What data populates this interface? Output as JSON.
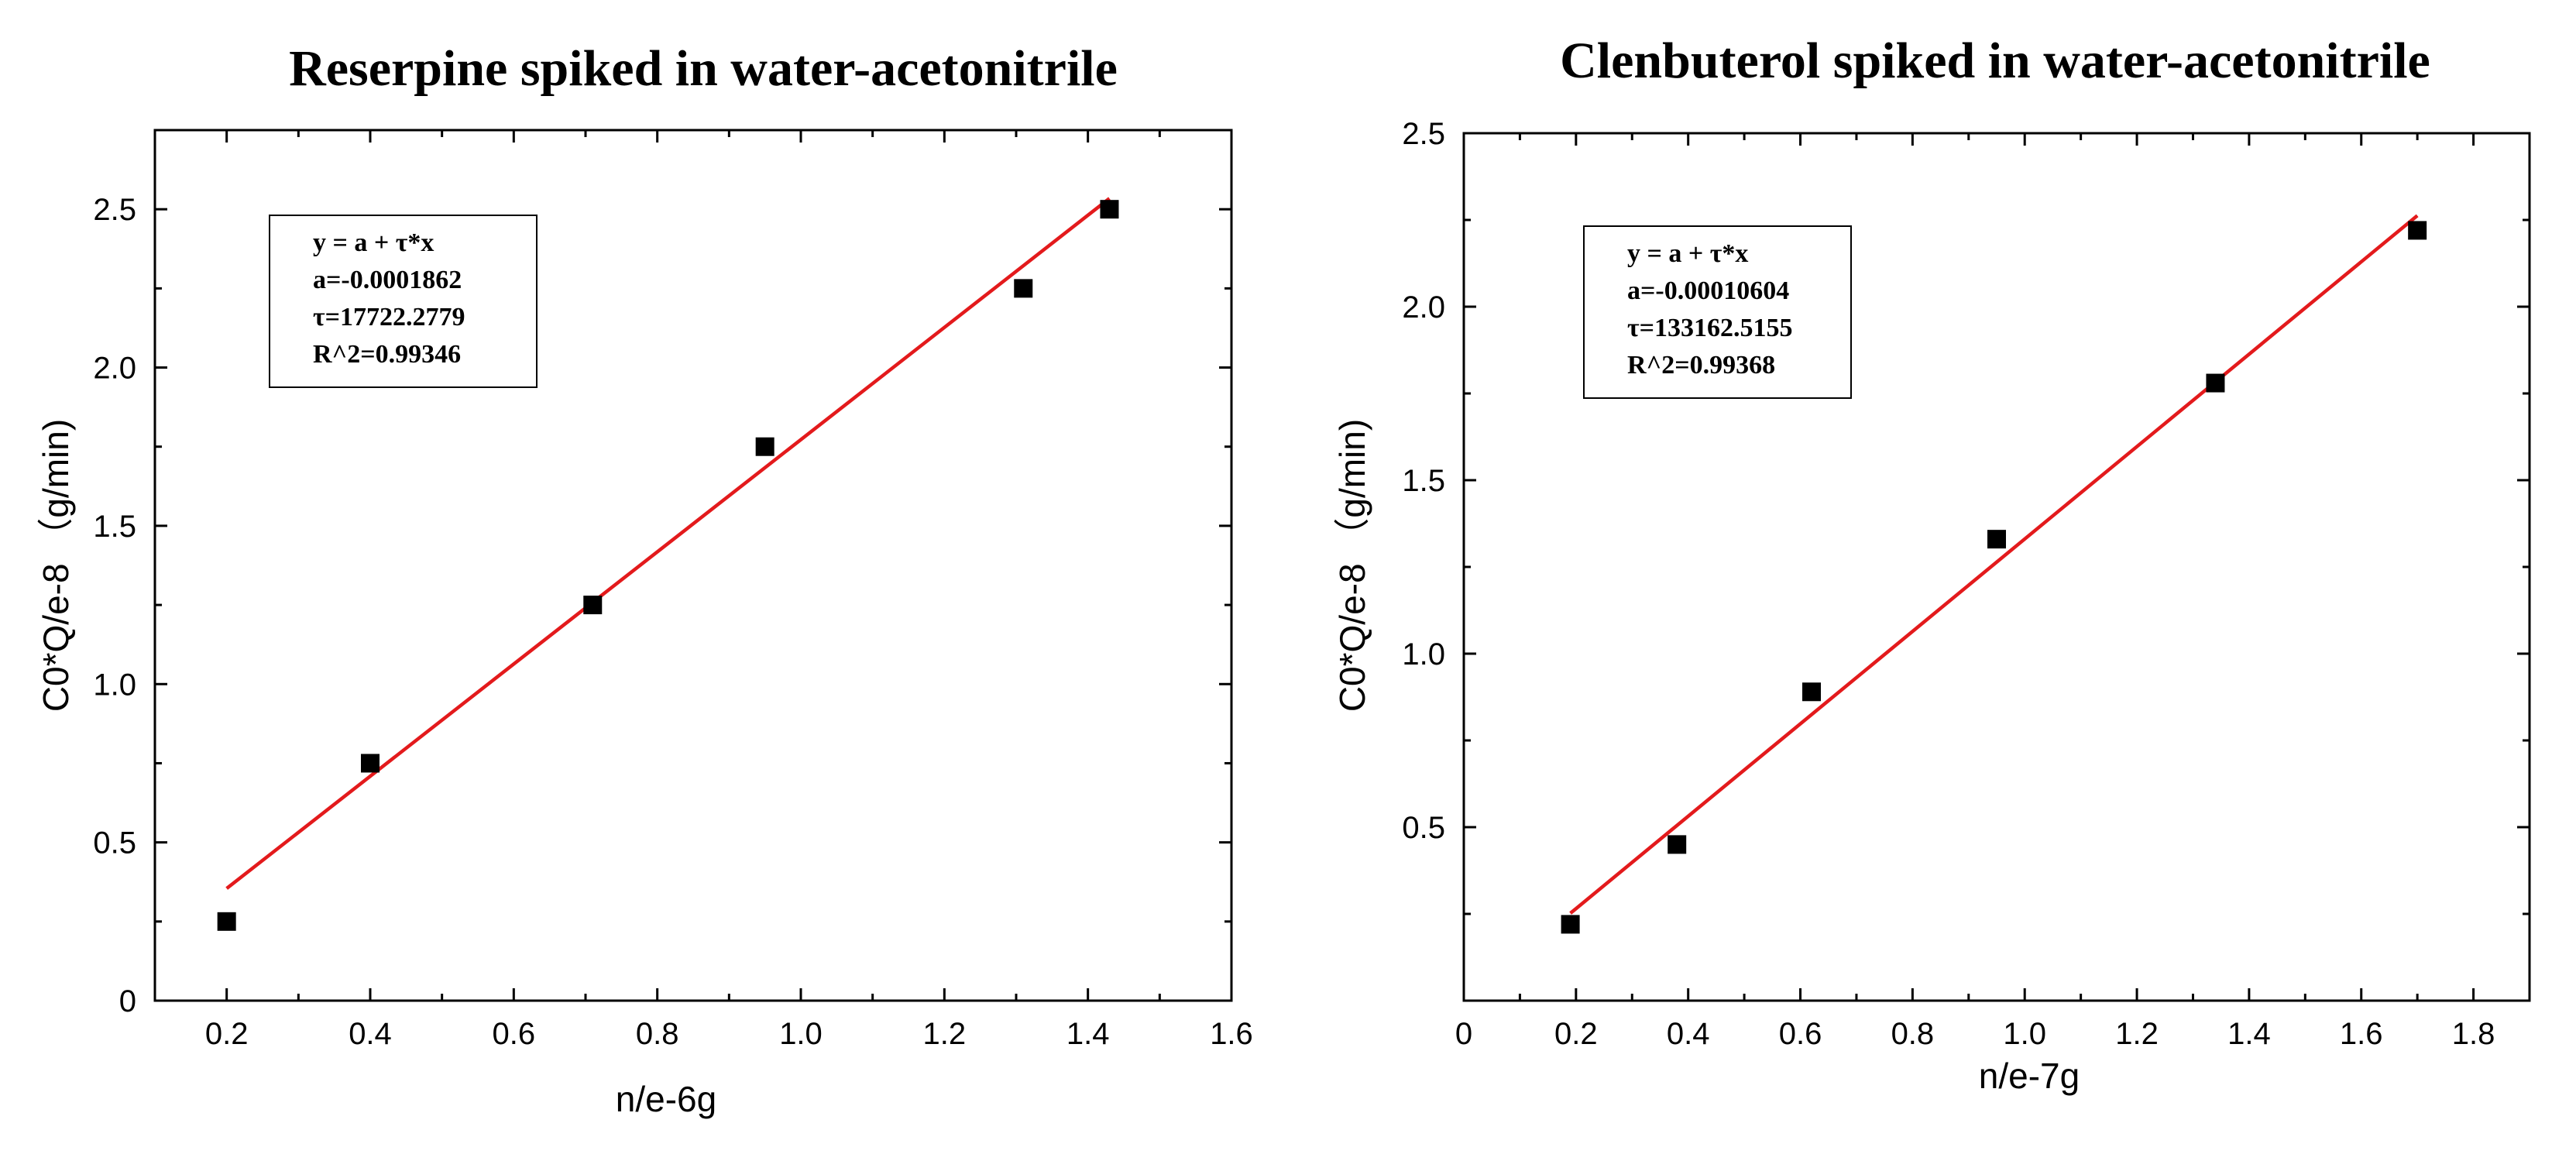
{
  "chart_data": [
    {
      "type": "scatter",
      "title": "Reserpine spiked in water-acetonitrile",
      "xlabel": "n/e-6g",
      "ylabel": "C0*Q/e-8 （g/min)",
      "xlim": [
        0.1,
        1.6
      ],
      "ylim": [
        0,
        2.75
      ],
      "grid": false,
      "x_ticks": [
        0.2,
        0.4,
        0.6,
        0.8,
        1.0,
        1.2,
        1.4,
        1.6
      ],
      "x_tick_labels": [
        "0.2",
        "0.4",
        "0.6",
        "0.8",
        "1.0",
        "1.2",
        "1.4",
        "1.6"
      ],
      "y_ticks": [
        0,
        0.5,
        1.0,
        1.5,
        2.0,
        2.5
      ],
      "y_tick_labels": [
        "0",
        "0.5",
        "1.0",
        "1.5",
        "2.0",
        "2.5"
      ],
      "series": [
        {
          "name": "data",
          "marker": "square",
          "x": [
            0.2,
            0.4,
            0.71,
            0.95,
            1.31,
            1.43
          ],
          "y": [
            0.25,
            0.75,
            1.25,
            1.75,
            2.25,
            2.5
          ]
        }
      ],
      "fit": {
        "x_range": [
          0.2,
          1.43
        ],
        "intercept": 0.0,
        "slope": 1.7722
      },
      "legend": {
        "placement": "top-left",
        "lines": [
          "y = a + τ*x",
          "a=-0.0001862",
          "τ=17722.2779",
          "R^2=0.99346"
        ]
      }
    },
    {
      "type": "scatter",
      "title": "Clenbuterol spiked in water-acetonitrile",
      "xlabel": "n/e-7g",
      "ylabel": "C0*Q/e-8 （g/min)",
      "xlim": [
        0,
        1.9
      ],
      "ylim": [
        0,
        2.5
      ],
      "grid": false,
      "x_ticks": [
        0,
        0.2,
        0.4,
        0.6,
        0.8,
        1.0,
        1.2,
        1.4,
        1.6,
        1.8
      ],
      "x_tick_labels": [
        "0",
        "0.2",
        "0.4",
        "0.6",
        "0.8",
        "1.0",
        "1.2",
        "1.4",
        "1.6",
        "1.8"
      ],
      "y_ticks": [
        0.5,
        1.0,
        1.5,
        2.0,
        2.5
      ],
      "y_tick_labels": [
        "0.5",
        "1.0",
        "1.5",
        "2.0",
        "2.5"
      ],
      "series": [
        {
          "name": "data",
          "marker": "square",
          "x": [
            0.19,
            0.38,
            0.62,
            0.95,
            1.34,
            1.7
          ],
          "y": [
            0.22,
            0.45,
            0.89,
            1.33,
            1.78,
            2.22
          ]
        }
      ],
      "fit": {
        "x_range": [
          0.19,
          1.7
        ],
        "intercept": -0.0011,
        "slope": 1.3316
      },
      "legend": {
        "placement": "top-left",
        "lines": [
          "y = a + τ*x",
          "a=-0.00010604",
          "τ=133162.5155",
          "R^2=0.99368"
        ]
      }
    }
  ],
  "colors": {
    "fit_line": "#e31a1c",
    "points": "#000000",
    "axes": "#000000"
  }
}
